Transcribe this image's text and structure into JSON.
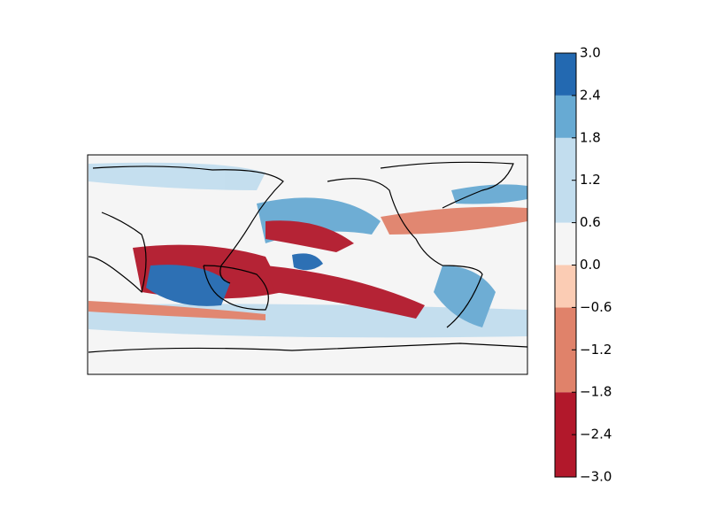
{
  "chart_data": {
    "type": "colorbar",
    "ylim": [
      -3.0,
      3.0
    ],
    "boundaries": [
      -3.0,
      -1.8,
      -0.6,
      0.0,
      0.6,
      1.8,
      2.4,
      3.0
    ],
    "colors": [
      "#b2182b",
      "#e0826a",
      "#fbccb4",
      "#f5f5f5",
      "#c2ddee",
      "#67aad3",
      "#2369b1"
    ],
    "yticks": [
      {
        "value": -3.0,
        "label": "−3.0"
      },
      {
        "value": -2.4,
        "label": "−2.4"
      },
      {
        "value": -1.8,
        "label": "−1.8"
      },
      {
        "value": -1.2,
        "label": "−1.2"
      },
      {
        "value": -0.6,
        "label": "−0.6"
      },
      {
        "value": 0.0,
        "label": "0.0"
      },
      {
        "value": 0.6,
        "label": "0.6"
      },
      {
        "value": 1.2,
        "label": "1.2"
      },
      {
        "value": 1.8,
        "label": "1.8"
      },
      {
        "value": 2.4,
        "label": "2.4"
      },
      {
        "value": 3.0,
        "label": "3.0"
      }
    ]
  }
}
